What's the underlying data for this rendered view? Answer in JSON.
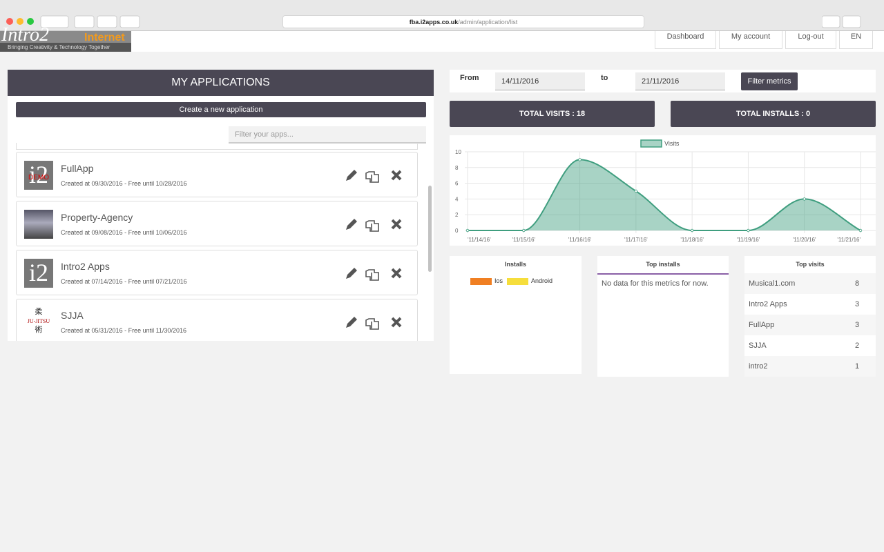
{
  "browser": {
    "url_host": "fba.i2apps.co.uk",
    "url_path": "/admin/application/list"
  },
  "header": {
    "logo_main": "Intro2",
    "logo_accent": "Internet",
    "tagline": "Bringing Creativity & Technology Together",
    "nav": [
      "Dashboard",
      "My account",
      "Log-out",
      "EN"
    ]
  },
  "applications": {
    "title": "MY APPLICATIONS",
    "create_button": "Create a new application",
    "filter_placeholder": "Filter your apps...",
    "items": [
      {
        "name": "FullApp",
        "details": "Created at 09/30/2016 - Free until 10/28/2016",
        "icon_text": "i2",
        "icon_badge": "DEMO"
      },
      {
        "name": "Property-Agency",
        "details": "Created at 09/08/2016 - Free until 10/06/2016"
      },
      {
        "name": "Intro2 Apps",
        "details": "Created at 07/14/2016 - Free until 07/21/2016",
        "icon_text": "i2"
      },
      {
        "name": "SJJA",
        "details": "Created at 05/31/2016 - Free until 11/30/2016",
        "icon_lines": [
          "柔",
          "JU-JITSU",
          "術"
        ]
      }
    ]
  },
  "metrics_filter": {
    "from_label": "From",
    "from_date": "14/11/2016",
    "to_label": "to",
    "to_date": "21/11/2016",
    "button": "Filter metrics"
  },
  "totals": [
    "TOTAL VISITS : 18",
    "TOTAL INSTALLS : 0"
  ],
  "chart_data": {
    "type": "line",
    "categories": [
      "'11/14/16'",
      "'11/15/16'",
      "'11/16/16'",
      "'11/17/16'",
      "'11/18/16'",
      "'11/19/16'",
      "'11/20/16'",
      "'11/21/16'"
    ],
    "series": [
      {
        "name": "Visits",
        "color": "#3f9e7f",
        "values": [
          0,
          0,
          9,
          5,
          0,
          0,
          4,
          0
        ]
      }
    ],
    "ylim": [
      0,
      10
    ],
    "yticks": [
      0,
      2,
      4,
      6,
      8,
      10
    ],
    "grid": true,
    "legend": "top",
    "smooth": true,
    "filled": true
  },
  "installs": {
    "title": "Installs",
    "legend": [
      {
        "name": "Ios",
        "color": "#f07f22"
      },
      {
        "name": "Android",
        "color": "#f6de3c"
      }
    ]
  },
  "top_installs": {
    "title": "Top installs",
    "message": "No data for this metrics for now."
  },
  "top_visits": {
    "title": "Top visits",
    "rows": [
      [
        "Musical1.com",
        8
      ],
      [
        "Intro2 Apps",
        3
      ],
      [
        "FullApp",
        3
      ],
      [
        "SJJA",
        2
      ],
      [
        "intro2",
        1
      ]
    ]
  }
}
